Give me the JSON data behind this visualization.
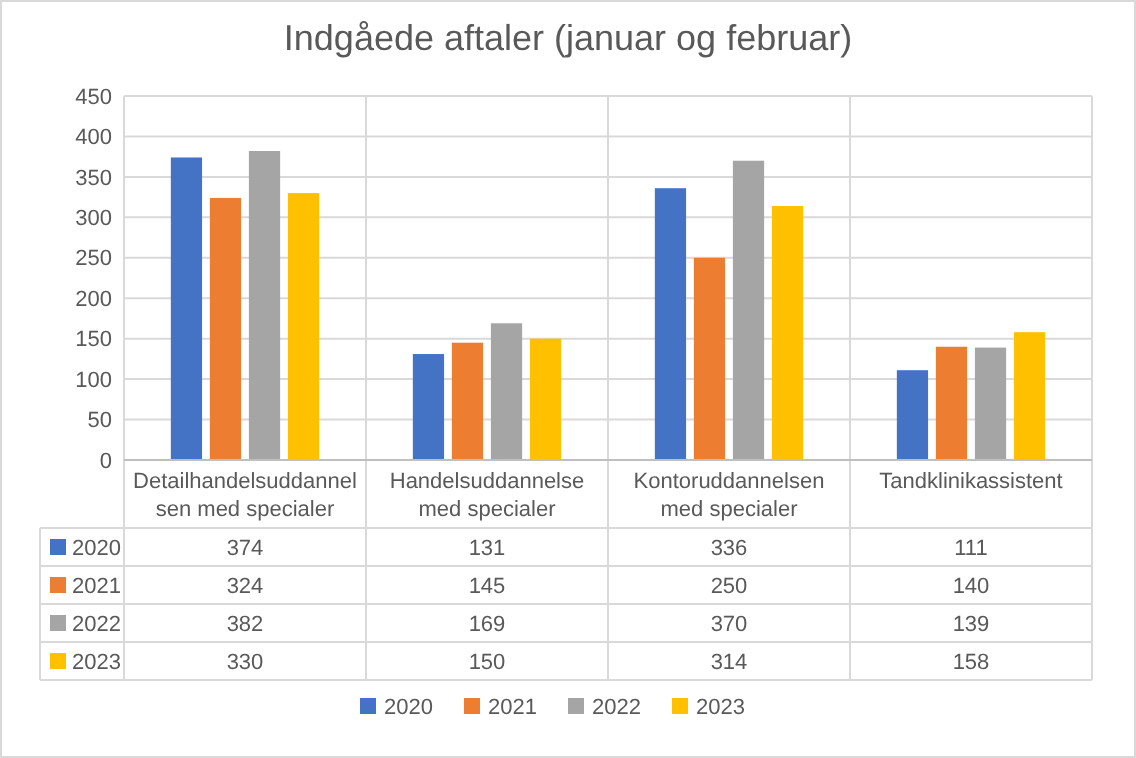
{
  "chart_data": {
    "type": "bar",
    "title": "Indgåede aftaler (januar og februar)",
    "categories": [
      "Detailhandelsuddannelsen med specialer",
      "Handelsuddannelse med specialer",
      "Kontoruddannelsen med specialer",
      "Tandklinikassistent"
    ],
    "series": [
      {
        "name": "2020",
        "color": "#4472c4",
        "values": [
          374,
          131,
          336,
          111
        ]
      },
      {
        "name": "2021",
        "color": "#ed7d31",
        "values": [
          324,
          145,
          250,
          140
        ]
      },
      {
        "name": "2022",
        "color": "#a5a5a5",
        "values": [
          382,
          169,
          370,
          139
        ]
      },
      {
        "name": "2023",
        "color": "#ffc000",
        "values": [
          330,
          150,
          314,
          158
        ]
      }
    ],
    "ylim": [
      0,
      450
    ],
    "yticks": [
      0,
      50,
      100,
      150,
      200,
      250,
      300,
      350,
      400,
      450
    ],
    "grid": "y",
    "legend": "bottom",
    "data_labels": true
  }
}
